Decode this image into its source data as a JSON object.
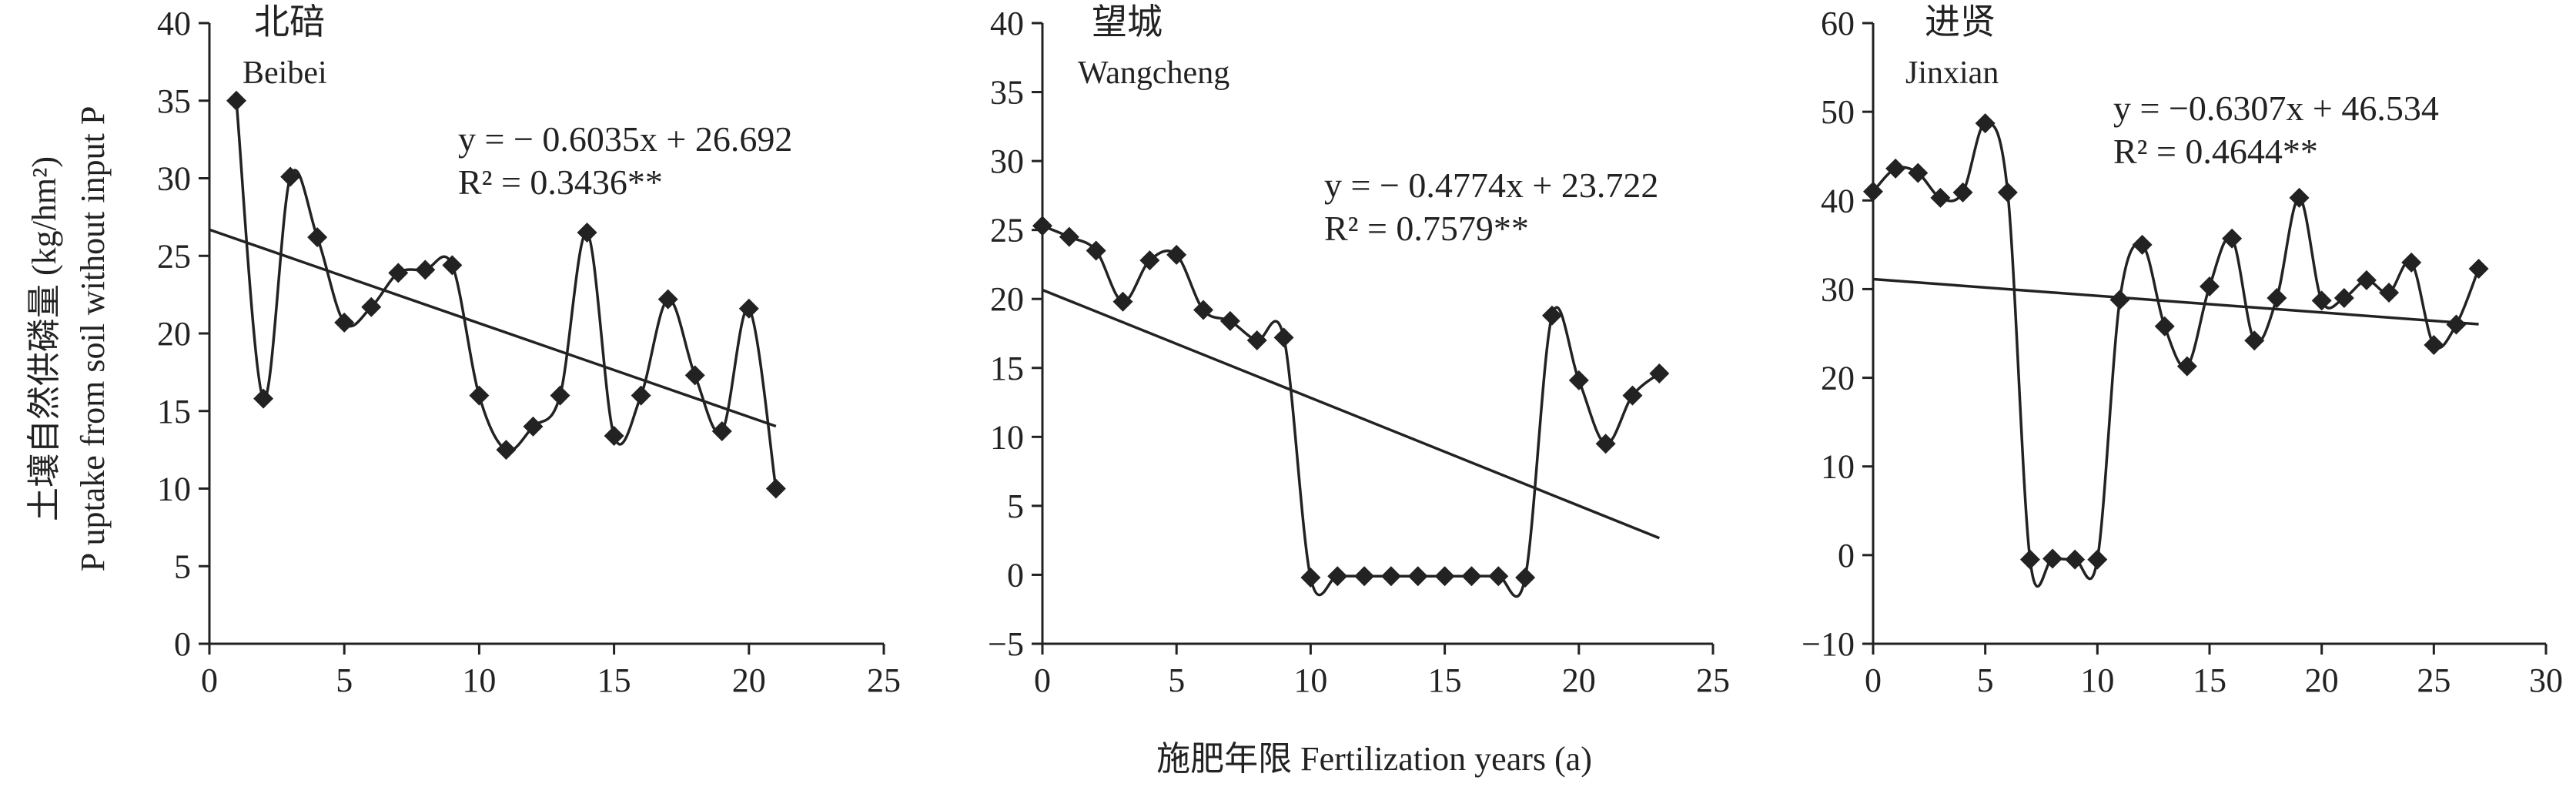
{
  "figure": {
    "ylabel_cn": "土壤自然供磷量 (kg/hm²)",
    "ylabel_en": "P uptake from soil without input P",
    "xlabel": "施肥年限 Fertilization years (a)"
  },
  "chart_data": [
    {
      "type": "scatter",
      "title": "北碚",
      "subtitle": "Beibei",
      "xlim": [
        0,
        25
      ],
      "ylim": [
        0,
        40
      ],
      "xticks": [
        0,
        5,
        10,
        15,
        20,
        25
      ],
      "yticks": [
        0,
        5,
        10,
        15,
        20,
        25,
        30,
        35,
        40
      ],
      "equation": "y = − 0.6035x + 26.692",
      "r2": "R² = 0.3436**",
      "trend": {
        "slope": -0.6035,
        "intercept": 26.692,
        "x_range": [
          0,
          21
        ]
      },
      "x": [
        1,
        2,
        3,
        4,
        5,
        6,
        7,
        8,
        9,
        10,
        11,
        12,
        13,
        14,
        15,
        16,
        17,
        18,
        19,
        20,
        21
      ],
      "y": [
        35.0,
        15.8,
        30.1,
        26.2,
        20.7,
        21.7,
        23.9,
        24.1,
        24.4,
        16.0,
        12.5,
        14.0,
        16.0,
        26.5,
        13.4,
        16.0,
        22.2,
        17.3,
        13.7,
        21.6,
        10.0
      ]
    },
    {
      "type": "scatter",
      "title": "望城",
      "subtitle": "Wangcheng",
      "xlim": [
        0,
        25
      ],
      "ylim": [
        -5,
        40
      ],
      "xticks": [
        0,
        5,
        10,
        15,
        20,
        25
      ],
      "yticks": [
        -5,
        0,
        5,
        10,
        15,
        20,
        25,
        30,
        35,
        40
      ],
      "equation": "y = − 0.4774x + 23.722",
      "r2": "R² = 0.7579**",
      "trend": {
        "slope": -0.4774,
        "intercept": 23.722,
        "x_range": [
          0,
          23
        ]
      },
      "x": [
        0,
        1,
        2,
        3,
        4,
        5,
        6,
        7,
        8,
        9,
        10,
        11,
        12,
        13,
        14,
        15,
        16,
        17,
        18,
        19,
        20,
        21,
        22,
        23
      ],
      "y": [
        25.3,
        24.5,
        23.5,
        19.8,
        22.8,
        23.2,
        19.2,
        18.4,
        17.0,
        17.2,
        -0.2,
        -0.1,
        -0.1,
        -0.1,
        -0.1,
        -0.1,
        -0.1,
        -0.1,
        -0.2,
        18.8,
        14.1,
        9.5,
        13.0,
        14.6
      ]
    },
    {
      "type": "scatter",
      "title": "进贤",
      "subtitle": "Jinxian",
      "xlim": [
        0,
        30
      ],
      "ylim": [
        -10,
        60
      ],
      "xticks": [
        0,
        5,
        10,
        15,
        20,
        25,
        30
      ],
      "yticks": [
        -10,
        0,
        10,
        20,
        30,
        40,
        50,
        60
      ],
      "equation": "y = −0.6307x + 46.534",
      "r2": "R² = 0.4644**",
      "trend": {
        "slope": -0.6307,
        "intercept": 46.534,
        "x_range": [
          0,
          27
        ]
      },
      "x": [
        0,
        1,
        2,
        3,
        4,
        5,
        6,
        7,
        8,
        9,
        10,
        11,
        12,
        13,
        14,
        15,
        16,
        17,
        18,
        19,
        20,
        21,
        22,
        23,
        24,
        25,
        26,
        27
      ],
      "y": [
        41.0,
        43.6,
        43.1,
        40.3,
        40.9,
        48.7,
        40.9,
        -0.5,
        -0.4,
        -0.5,
        -0.5,
        28.8,
        35.0,
        25.8,
        21.3,
        30.3,
        35.7,
        24.2,
        29.0,
        40.3,
        28.7,
        29.0,
        31.0,
        29.6,
        33.0,
        23.7,
        26.0,
        32.3
      ]
    }
  ]
}
